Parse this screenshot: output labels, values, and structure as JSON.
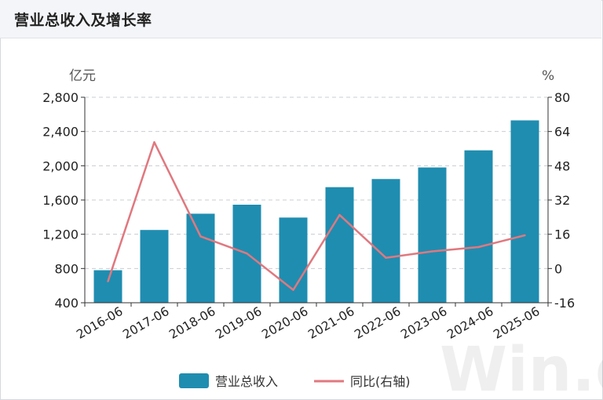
{
  "header": {
    "title": "营业总收入及增长率"
  },
  "chart_data": {
    "type": "bar",
    "categories": [
      "2016-06",
      "2017-06",
      "2018-06",
      "2019-06",
      "2020-06",
      "2021-06",
      "2022-06",
      "2023-06",
      "2024-06",
      "2025-06"
    ],
    "series": [
      {
        "name": "营业总收入",
        "type": "bar",
        "axis": "left",
        "color": "#1f8db0",
        "values": [
          780,
          1250,
          1440,
          1545,
          1395,
          1750,
          1845,
          1980,
          2180,
          2530
        ]
      },
      {
        "name": "同比(右轴)",
        "type": "line",
        "axis": "right",
        "color": "#e0787f",
        "values": [
          -6,
          59,
          15,
          7,
          -10,
          25,
          5,
          8,
          10,
          15.5
        ]
      }
    ],
    "left_axis": {
      "unit": "亿元",
      "ylim": [
        400,
        2800
      ],
      "ticks": [
        400,
        800,
        1200,
        1600,
        2000,
        2400,
        2800
      ],
      "tick_labels": [
        "400",
        "800",
        "1,200",
        "1,600",
        "2,000",
        "2,400",
        "2,800"
      ]
    },
    "right_axis": {
      "unit": "%",
      "ylim": [
        -16,
        80
      ],
      "ticks": [
        -16,
        0,
        16,
        32,
        48,
        64,
        80
      ],
      "tick_labels": [
        "-16",
        "0",
        "16",
        "32",
        "48",
        "64",
        "80"
      ]
    },
    "grid": true,
    "legend_position": "bottom-center"
  },
  "watermark": "Win.d"
}
